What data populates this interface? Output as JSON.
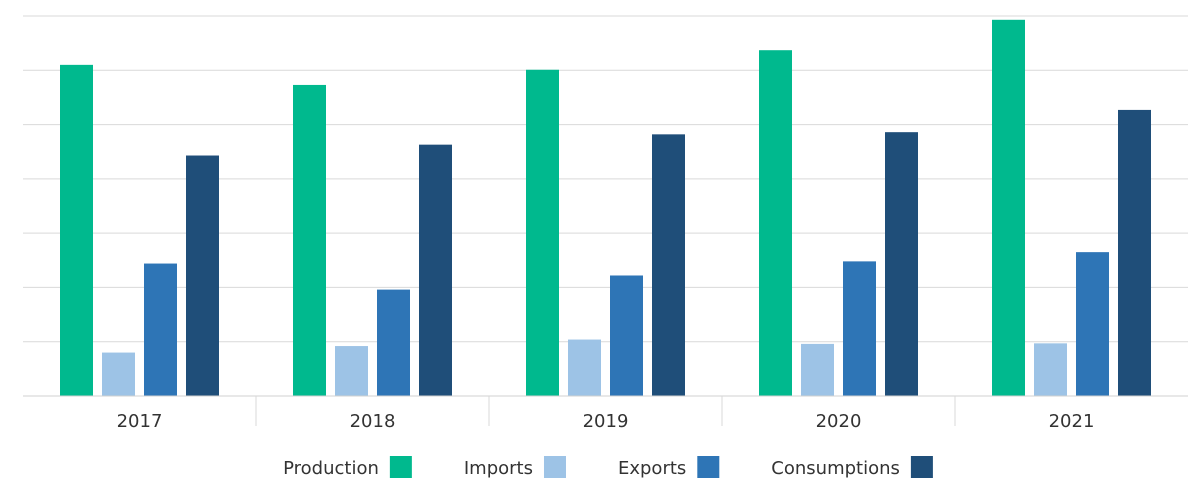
{
  "chart_data": {
    "type": "bar",
    "categories": [
      "2017",
      "2018",
      "2019",
      "2020",
      "2021"
    ],
    "series": [
      {
        "name": "Production",
        "color": "#00B98E",
        "values": [
          610,
          573,
          601,
          637,
          693
        ]
      },
      {
        "name": "Imports",
        "color": "#9DC3E6",
        "values": [
          80,
          92,
          104,
          96,
          97
        ]
      },
      {
        "name": "Exports",
        "color": "#2E75B6",
        "values": [
          244,
          196,
          222,
          248,
          265
        ]
      },
      {
        "name": "Consumptions",
        "color": "#1F4E79",
        "values": [
          443,
          463,
          482,
          486,
          527
        ]
      }
    ],
    "ylim": [
      0,
      700
    ],
    "grid": true,
    "legend": "bottom"
  }
}
